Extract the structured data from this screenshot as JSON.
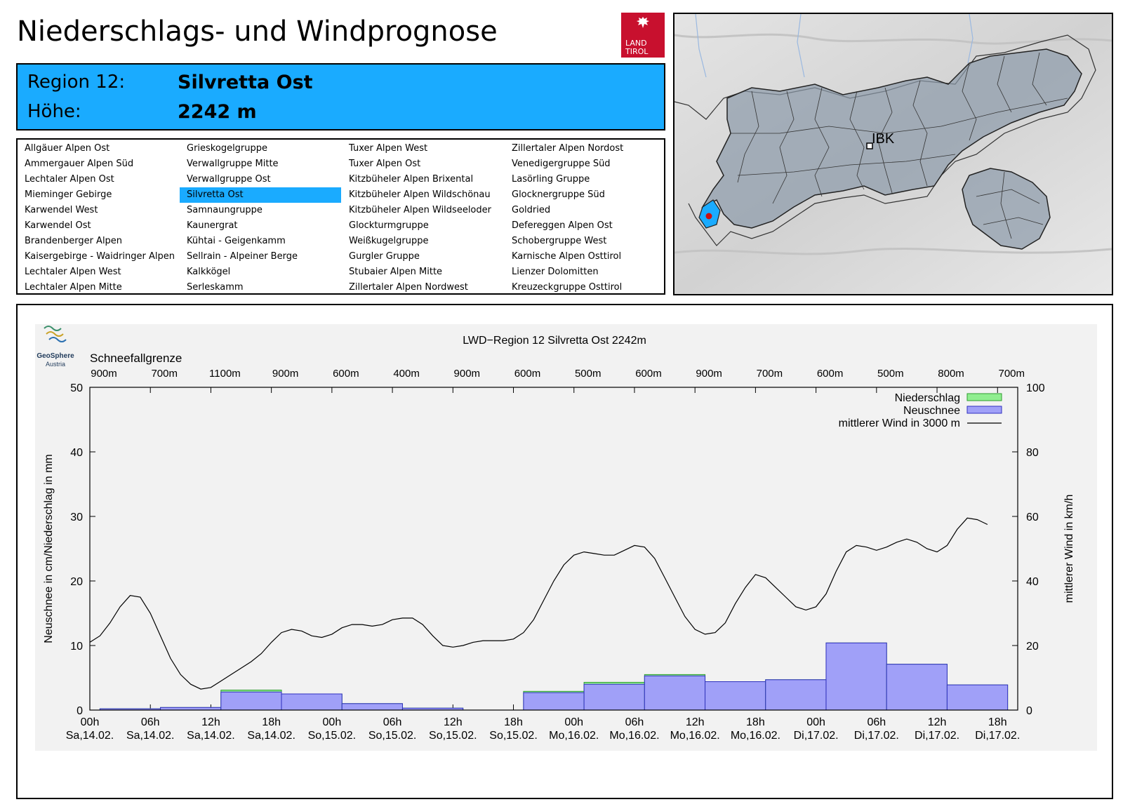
{
  "header": {
    "title": "Niederschlags- und Windprognose",
    "logo_text_line1": "LAND",
    "logo_text_line2": "TIROL"
  },
  "region": {
    "region_label": "Region 12:",
    "region_name": "Silvretta Ost",
    "height_label": "Höhe:",
    "height_value": "2242 m"
  },
  "region_list": {
    "columns": [
      [
        "Allgäuer Alpen Ost",
        "Ammergauer Alpen Süd",
        "Lechtaler Alpen Ost",
        "Mieminger Gebirge",
        "Karwendel West",
        "Karwendel Ost",
        "Brandenberger Alpen",
        "Kaisergebirge - Waidringer Alpen",
        "Lechtaler Alpen West",
        "Lechtaler Alpen Mitte"
      ],
      [
        "Grieskogelgruppe",
        "Verwallgruppe Mitte",
        "Verwallgruppe Ost",
        "Silvretta Ost",
        "Samnaungruppe",
        "Kaunergrat",
        "Kühtai - Geigenkamm",
        "Sellrain - Alpeiner Berge",
        "Kalkkögel",
        "Serleskamm"
      ],
      [
        "Tuxer Alpen West",
        "Tuxer Alpen Ost",
        "Kitzbüheler Alpen Brixental",
        "Kitzbüheler Alpen Wildschönau",
        "Kitzbüheler Alpen Wildseeloder",
        "Glockturmgruppe",
        "Weißkugelgruppe",
        "Gurgler Gruppe",
        "Stubaier Alpen Mitte",
        "Zillertaler Alpen Nordwest"
      ],
      [
        "Zillertaler Alpen Nordost",
        "Venedigergruppe Süd",
        "Lasörling Gruppe",
        "Glocknergruppe Süd",
        "Goldried",
        "Defereggen Alpen Ost",
        "Schobergruppe West",
        "Karnische Alpen Osttirol",
        "Lienzer Dolomitten",
        "Kreuzeckgruppe Osttirol"
      ]
    ],
    "selected": "Silvretta Ost"
  },
  "map": {
    "city_label": "IBK"
  },
  "colors": {
    "accent_blue": "#1aabff",
    "tirol_red": "#c8102e",
    "precip_green": "#90ee90",
    "snow_blue": "#a0a0f8",
    "wind_line": "#000000"
  },
  "chart_data": {
    "type": "bar",
    "title": "LWD−Region 12 Silvretta Ost 2242m",
    "logo_text_line1": "GeoSphere",
    "logo_text_line2": "Austria",
    "snowline_label": "Schneefallgrenze",
    "snowline": [
      "900m",
      "700m",
      "1100m",
      "900m",
      "600m",
      "400m",
      "900m",
      "600m",
      "500m",
      "600m",
      "900m",
      "700m",
      "600m",
      "500m",
      "800m",
      "700m"
    ],
    "x_ticks_time": [
      "00h",
      "06h",
      "12h",
      "18h",
      "00h",
      "06h",
      "12h",
      "18h",
      "00h",
      "06h",
      "12h",
      "18h",
      "00h",
      "06h",
      "12h",
      "18h"
    ],
    "x_ticks_date": [
      "Sa,14.02.",
      "Sa,14.02.",
      "Sa,14.02.",
      "Sa,14.02.",
      "So,15.02.",
      "So,15.02.",
      "So,15.02.",
      "So,15.02.",
      "Mo,16.02.",
      "Mo,16.02.",
      "Mo,16.02.",
      "Mo,16.02.",
      "Di,17.02.",
      "Di,17.02.",
      "Di,17.02.",
      "Di,17.02."
    ],
    "ylabel": "Neuschnee in cm/Niederschlag in mm",
    "y2label": "mittlerer Wind in km/h",
    "ylim": [
      0,
      50
    ],
    "y2lim": [
      0,
      100
    ],
    "yticks": [
      "0",
      "10",
      "20",
      "30",
      "40",
      "50"
    ],
    "y2ticks": [
      "0",
      "20",
      "40",
      "60",
      "80",
      "100"
    ],
    "legend": [
      "Niederschlag",
      "Neuschnee",
      "mittlerer Wind in 3000 m"
    ],
    "legend_position": "top-right",
    "bar_hours_start": [
      0,
      6,
      12,
      18,
      24,
      30,
      36,
      42,
      48,
      54,
      60,
      66,
      72,
      78,
      84,
      90
    ],
    "niederschlag": [
      0.2,
      0.4,
      3.1,
      2.5,
      1.0,
      0.3,
      0.0,
      2.9,
      4.3,
      5.5,
      4.4,
      4.7,
      10.4,
      7.1,
      3.9,
      0
    ],
    "neuschnee": [
      0.2,
      0.4,
      2.8,
      2.5,
      1.0,
      0.3,
      0.0,
      2.7,
      4.0,
      5.3,
      4.4,
      4.7,
      10.4,
      7.1,
      3.9,
      0
    ],
    "wind": [
      [
        0,
        21
      ],
      [
        1,
        23
      ],
      [
        2,
        27
      ],
      [
        3,
        32
      ],
      [
        4,
        35.5
      ],
      [
        5,
        35
      ],
      [
        6,
        30
      ],
      [
        7,
        23
      ],
      [
        8,
        16
      ],
      [
        9,
        11
      ],
      [
        10,
        8
      ],
      [
        11,
        6.5
      ],
      [
        12,
        7
      ],
      [
        13,
        9
      ],
      [
        14,
        11
      ],
      [
        15,
        13
      ],
      [
        16,
        15
      ],
      [
        17,
        17.5
      ],
      [
        18,
        21
      ],
      [
        19,
        24
      ],
      [
        20,
        25
      ],
      [
        21,
        24.5
      ],
      [
        22,
        23
      ],
      [
        23,
        22.5
      ],
      [
        24,
        23.5
      ],
      [
        25,
        25.5
      ],
      [
        26,
        26.5
      ],
      [
        27,
        26.5
      ],
      [
        28,
        26
      ],
      [
        29,
        26.5
      ],
      [
        30,
        28
      ],
      [
        31,
        28.5
      ],
      [
        32,
        28.5
      ],
      [
        33,
        26.5
      ],
      [
        34,
        23
      ],
      [
        35,
        20
      ],
      [
        36,
        19.5
      ],
      [
        37,
        20
      ],
      [
        38,
        21
      ],
      [
        39,
        21.5
      ],
      [
        40,
        21.5
      ],
      [
        41,
        21.5
      ],
      [
        42,
        22
      ],
      [
        43,
        24
      ],
      [
        44,
        28
      ],
      [
        45,
        34
      ],
      [
        46,
        40
      ],
      [
        47,
        45
      ],
      [
        48,
        48
      ],
      [
        49,
        49
      ],
      [
        50,
        48.5
      ],
      [
        51,
        48
      ],
      [
        52,
        48
      ],
      [
        53,
        49.5
      ],
      [
        54,
        51
      ],
      [
        55,
        50.5
      ],
      [
        56,
        47
      ],
      [
        57,
        41
      ],
      [
        58,
        35
      ],
      [
        59,
        29
      ],
      [
        60,
        25
      ],
      [
        61,
        23.5
      ],
      [
        62,
        24
      ],
      [
        63,
        27
      ],
      [
        64,
        33
      ],
      [
        65,
        38
      ],
      [
        66,
        42
      ],
      [
        67,
        41
      ],
      [
        68,
        38
      ],
      [
        69,
        35
      ],
      [
        70,
        32
      ],
      [
        71,
        31
      ],
      [
        72,
        32
      ],
      [
        73,
        36
      ],
      [
        74,
        43
      ],
      [
        75,
        49
      ],
      [
        76,
        51
      ],
      [
        77,
        50.5
      ],
      [
        78,
        49.5
      ],
      [
        79,
        50.5
      ],
      [
        80,
        52
      ],
      [
        81,
        53
      ],
      [
        82,
        52
      ],
      [
        83,
        50
      ],
      [
        84,
        49
      ],
      [
        85,
        51
      ],
      [
        86,
        56
      ],
      [
        87,
        59.5
      ],
      [
        88,
        59
      ],
      [
        89,
        57.5
      ]
    ]
  }
}
